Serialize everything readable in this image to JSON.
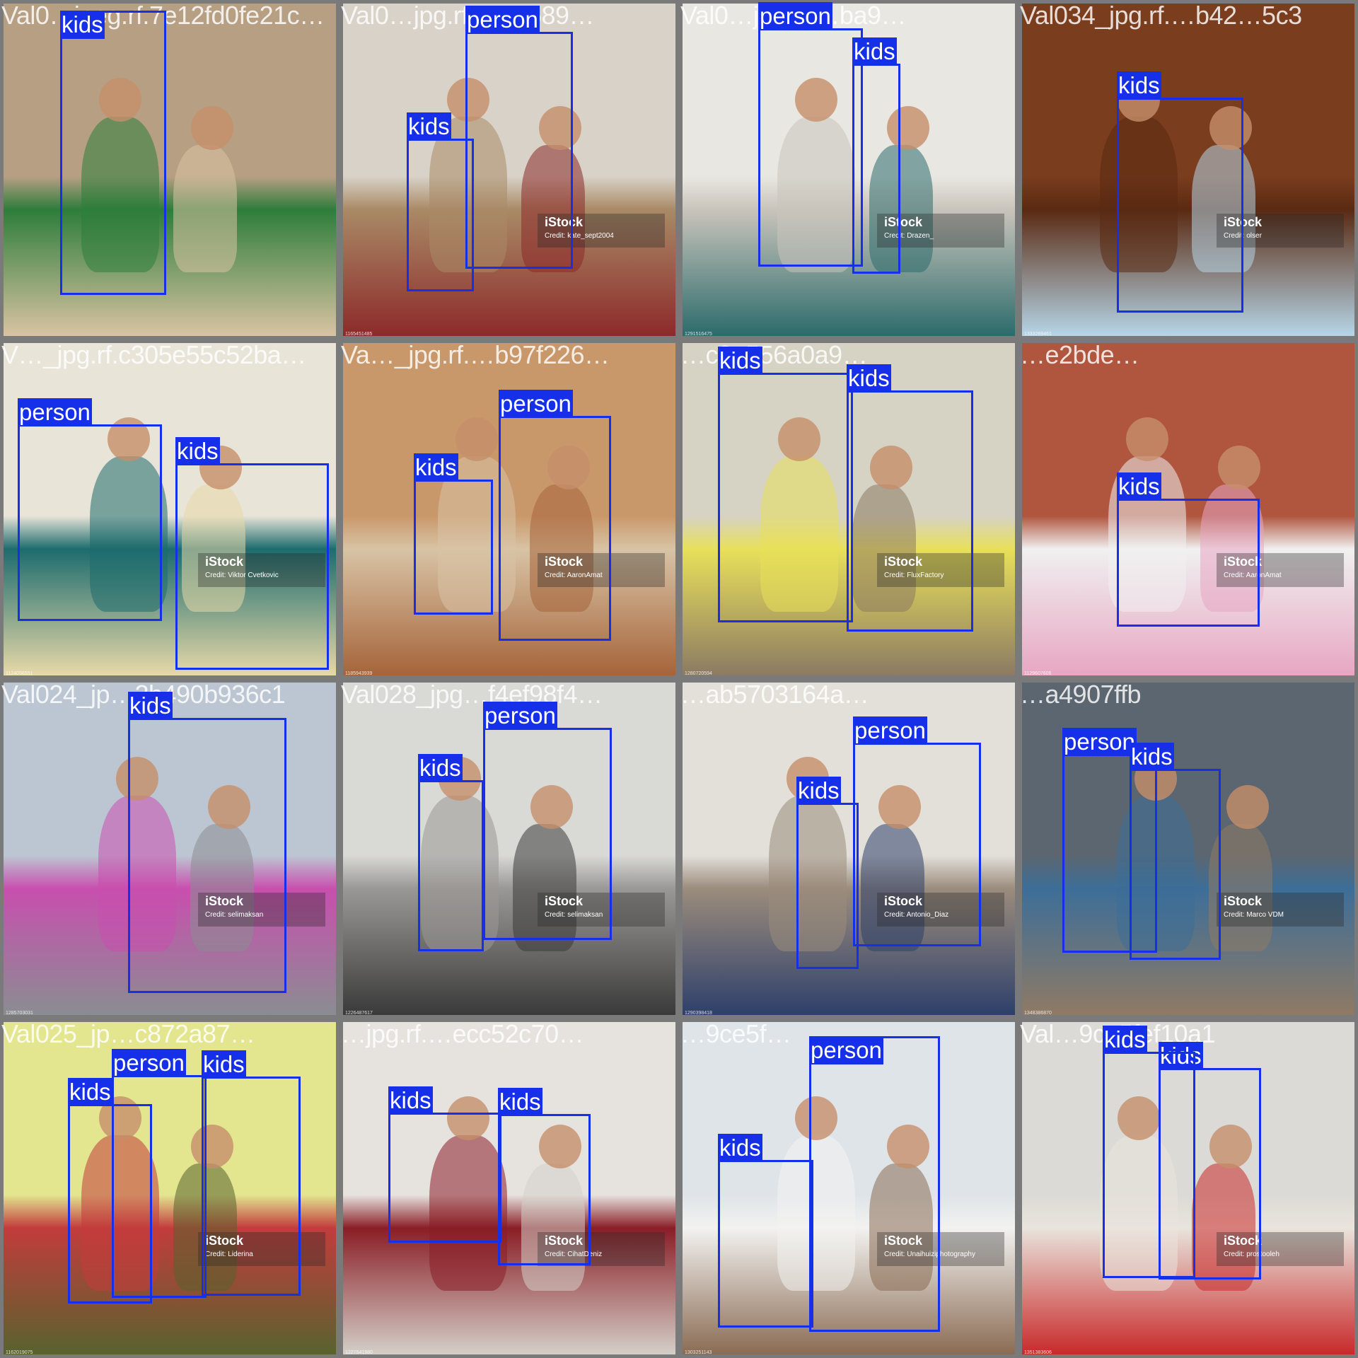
{
  "tiles": [
    {
      "filename": "Val0…jpeg.rf.7e12fd0fe21c…",
      "colors": [
        "#b79f84",
        "#2e7d3b",
        "#d9c3a3"
      ],
      "watermark": null,
      "stock_id": "",
      "boxes": [
        {
          "label": "kids"
        }
      ]
    },
    {
      "filename": "Val0…jpg.rf.…1b589…",
      "colors": [
        "#d8d2c8",
        "#a98a66",
        "#8c2a2a"
      ],
      "watermark": {
        "logo": "iStock",
        "credit": "Credit: kate_sept2004"
      },
      "stock_id": "1165451485",
      "boxes": [
        {
          "label": "person"
        },
        {
          "label": "kids"
        }
      ]
    },
    {
      "filename": "Val0…jpg.rf.…ba9…",
      "colors": [
        "#e9e7e2",
        "#c9c4bb",
        "#2c6b6b"
      ],
      "watermark": {
        "logo": "iStock",
        "credit": "Credit: Drazen_"
      },
      "stock_id": "1291516475",
      "boxes": [
        {
          "label": "person"
        },
        {
          "label": "kids"
        }
      ]
    },
    {
      "filename": "Val034_jpg.rf.…b42…5c3",
      "colors": [
        "#7a3d1e",
        "#5a2a12",
        "#b6d6e8"
      ],
      "watermark": {
        "logo": "iStock",
        "credit": "Credit: olser"
      },
      "stock_id": "1333269461",
      "boxes": [
        {
          "label": "kids"
        }
      ]
    },
    {
      "filename": "V…_jpg.rf.c305e55c52ba…",
      "colors": [
        "#e8e4d8",
        "#1d6c6e",
        "#e8d9a8"
      ],
      "watermark": {
        "logo": "iStock",
        "credit": "Credit: Viktor Cvetkovic"
      },
      "stock_id": "1124056551",
      "boxes": [
        {
          "label": "person"
        },
        {
          "label": "kids"
        }
      ]
    },
    {
      "filename": "Va…_jpg.rf.…b97f226…",
      "colors": [
        "#c9986a",
        "#d8c3a5",
        "#a5643a"
      ],
      "watermark": {
        "logo": "iStock",
        "credit": "Credit: AaronAmat"
      },
      "stock_id": "1185943939",
      "boxes": [
        {
          "label": "person"
        },
        {
          "label": "kids"
        }
      ]
    },
    {
      "filename": "…c2e556a0a9…",
      "colors": [
        "#d6d2c4",
        "#e8e05a",
        "#8c7a63"
      ],
      "watermark": {
        "logo": "iStock",
        "credit": "Credit: FluxFactory"
      },
      "stock_id": "1280720594",
      "boxes": [
        {
          "label": "kids"
        },
        {
          "label": "kids"
        }
      ]
    },
    {
      "filename": "…e2bde…",
      "colors": [
        "#b0553e",
        "#f0f0f0",
        "#e7a6c2"
      ],
      "watermark": {
        "logo": "iStock",
        "credit": "Credit: AaronAmat"
      },
      "stock_id": "1129607606",
      "boxes": [
        {
          "label": "kids"
        }
      ]
    },
    {
      "filename": "Val024_jp…2b490b936c1",
      "colors": [
        "#bcc6d2",
        "#c84fae",
        "#8a8d92"
      ],
      "watermark": {
        "logo": "iStock",
        "credit": "Credit: selimaksan"
      },
      "stock_id": "1285703031",
      "boxes": [
        {
          "label": "kids"
        }
      ]
    },
    {
      "filename": "Val028_jpg…f4ef98f4…",
      "colors": [
        "#d9d9d6",
        "#9a9896",
        "#3a3a3a"
      ],
      "watermark": {
        "logo": "iStock",
        "credit": "Credit: selimaksan"
      },
      "stock_id": "1226487617",
      "boxes": [
        {
          "label": "person"
        },
        {
          "label": "kids"
        }
      ]
    },
    {
      "filename": "…ab5703164a…",
      "colors": [
        "#e3e0da",
        "#9b8c7c",
        "#2d3f6a"
      ],
      "watermark": {
        "logo": "iStock",
        "credit": "Credit: Antonio_Diaz"
      },
      "stock_id": "1290398418",
      "boxes": [
        {
          "label": "person"
        },
        {
          "label": "kids"
        }
      ]
    },
    {
      "filename": "…a4907ffb",
      "colors": [
        "#5c6670",
        "#3d6e98",
        "#8f7a64"
      ],
      "watermark": {
        "logo": "iStock",
        "credit": "Credit: Marco VDM"
      },
      "stock_id": "1348386870",
      "boxes": [
        {
          "label": "person"
        },
        {
          "label": "kids"
        }
      ]
    },
    {
      "filename": "Val025_jp…c872a87…",
      "colors": [
        "#e3e58f",
        "#c23c3c",
        "#58632e"
      ],
      "watermark": {
        "logo": "iStock",
        "credit": "Credit: Liderina"
      },
      "stock_id": "1162019075",
      "boxes": [
        {
          "label": "person"
        },
        {
          "label": "kids"
        },
        {
          "label": "kids"
        }
      ]
    },
    {
      "filename": "…jpg.rf.…ecc52c70…",
      "colors": [
        "#e6e3df",
        "#8a1e26",
        "#d4cfc8"
      ],
      "watermark": {
        "logo": "iStock",
        "credit": "Credit: CihatDeniz"
      },
      "stock_id": "1227641980",
      "boxes": [
        {
          "label": "kids"
        },
        {
          "label": "kids"
        }
      ]
    },
    {
      "filename": "…9ce5f…",
      "colors": [
        "#dfe4e8",
        "#f2f2f0",
        "#8a6b53"
      ],
      "watermark": {
        "logo": "iStock",
        "credit": "Credit: Unaihuiziphotography"
      },
      "stock_id": "1303251143",
      "boxes": [
        {
          "label": "person"
        },
        {
          "label": "kids"
        }
      ]
    },
    {
      "filename": "Val…9ce5fef10a1",
      "colors": [
        "#dcdad6",
        "#e9e4dc",
        "#c8292a"
      ],
      "watermark": {
        "logo": "iStock",
        "credit": "Credit: prostooleh"
      },
      "stock_id": "1351383606",
      "boxes": [
        {
          "label": "kids"
        },
        {
          "label": "kids"
        }
      ]
    }
  ]
}
